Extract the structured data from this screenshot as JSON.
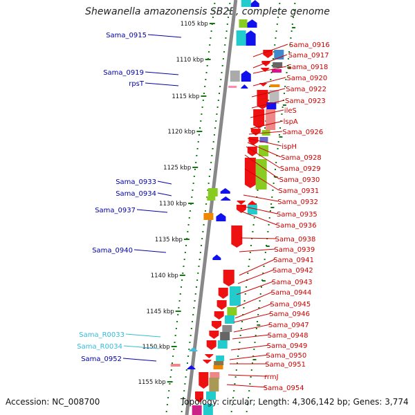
{
  "title": "Shewanella amazonensis SB2B, complete genome",
  "footer": {
    "accession": "Accession: NC_008700",
    "topology": "Topology: circular; Length: 4,306,142 bp; Genes: 3,774"
  },
  "colors": {
    "left_label": "#0000aa",
    "right_label": "#cc0000",
    "rna_label": "#33bbdd",
    "backbone": "#888888",
    "tick": "#117711"
  },
  "ticks": [
    "1105 kbp",
    "1110 kbp",
    "1115 kbp",
    "1120 kbp",
    "1125 kbp",
    "1130 kbp",
    "1135 kbp",
    "1140 kbp",
    "1145 kbp",
    "1150 kbp",
    "1155 kbp"
  ],
  "left_labels": [
    {
      "text": "Sama_0915"
    },
    {
      "text": "Sama_0919"
    },
    {
      "text": "rpsT"
    },
    {
      "text": "Sama_0933"
    },
    {
      "text": "Sama_0934"
    },
    {
      "text": "Sama_0937"
    },
    {
      "text": "Sama_0940"
    },
    {
      "text": "Sama_R0033",
      "rna": true
    },
    {
      "text": "Sama_R0034",
      "rna": true
    },
    {
      "text": "Sama_0952"
    }
  ],
  "right_labels": [
    "Sama_0916",
    "Sama_0917",
    "Sama_0918",
    "Sama_0920",
    "Sama_0922",
    "Sama_0923",
    "ileS",
    "lspA",
    "Sama_0926",
    "ispH",
    "Sama_0928",
    "Sama_0929",
    "Sama_0930",
    "Sama_0931",
    "Sama_0932",
    "Sama_0935",
    "Sama_0936",
    "Sama_0938",
    "Sama_0939",
    "Sama_0941",
    "Sama_0942",
    "Sama_0943",
    "Sama_0944",
    "Sama_0945",
    "Sama_0946",
    "Sama_0947",
    "Sama_0948",
    "Sama_0949",
    "Sama_0950",
    "Sama_0951",
    "rrmJ",
    "Sama_0954"
  ]
}
